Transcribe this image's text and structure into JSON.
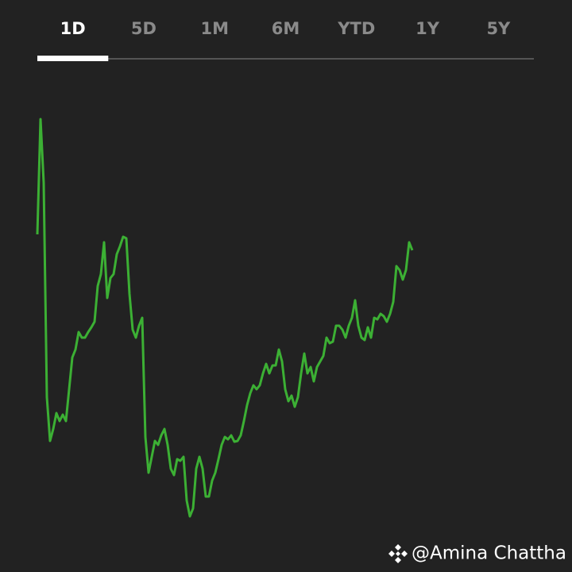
{
  "tabs": [
    "1D",
    "5D",
    "1M",
    "6M",
    "YTD",
    "1Y",
    "5Y"
  ],
  "selected_tab": 0,
  "watermark": "@Amina Chattha",
  "chart_data": {
    "type": "line",
    "color": "#3cb034",
    "xlim": [
      0,
      156
    ],
    "ylim": [
      0,
      600
    ],
    "values": [
      405,
      550,
      470,
      200,
      145,
      160,
      180,
      170,
      178,
      170,
      210,
      250,
      260,
      282,
      275,
      275,
      282,
      288,
      295,
      340,
      355,
      395,
      325,
      350,
      355,
      380,
      390,
      402,
      400,
      330,
      285,
      275,
      290,
      300,
      150,
      105,
      125,
      145,
      140,
      152,
      160,
      140,
      110,
      102,
      122,
      120,
      125,
      70,
      50,
      60,
      110,
      125,
      110,
      75,
      75,
      95,
      105,
      122,
      140,
      150,
      147,
      152,
      144,
      145,
      152,
      170,
      190,
      205,
      215,
      210,
      215,
      230,
      242,
      230,
      240,
      240,
      260,
      245,
      210,
      195,
      202,
      188,
      200,
      230,
      255,
      230,
      238,
      220,
      238,
      245,
      252,
      275,
      268,
      270,
      290,
      290,
      285,
      275,
      290,
      300,
      322,
      290,
      275,
      272,
      288,
      275,
      300,
      298,
      305,
      302,
      295,
      305,
      320,
      365,
      360,
      348,
      360,
      395,
      385
    ]
  }
}
